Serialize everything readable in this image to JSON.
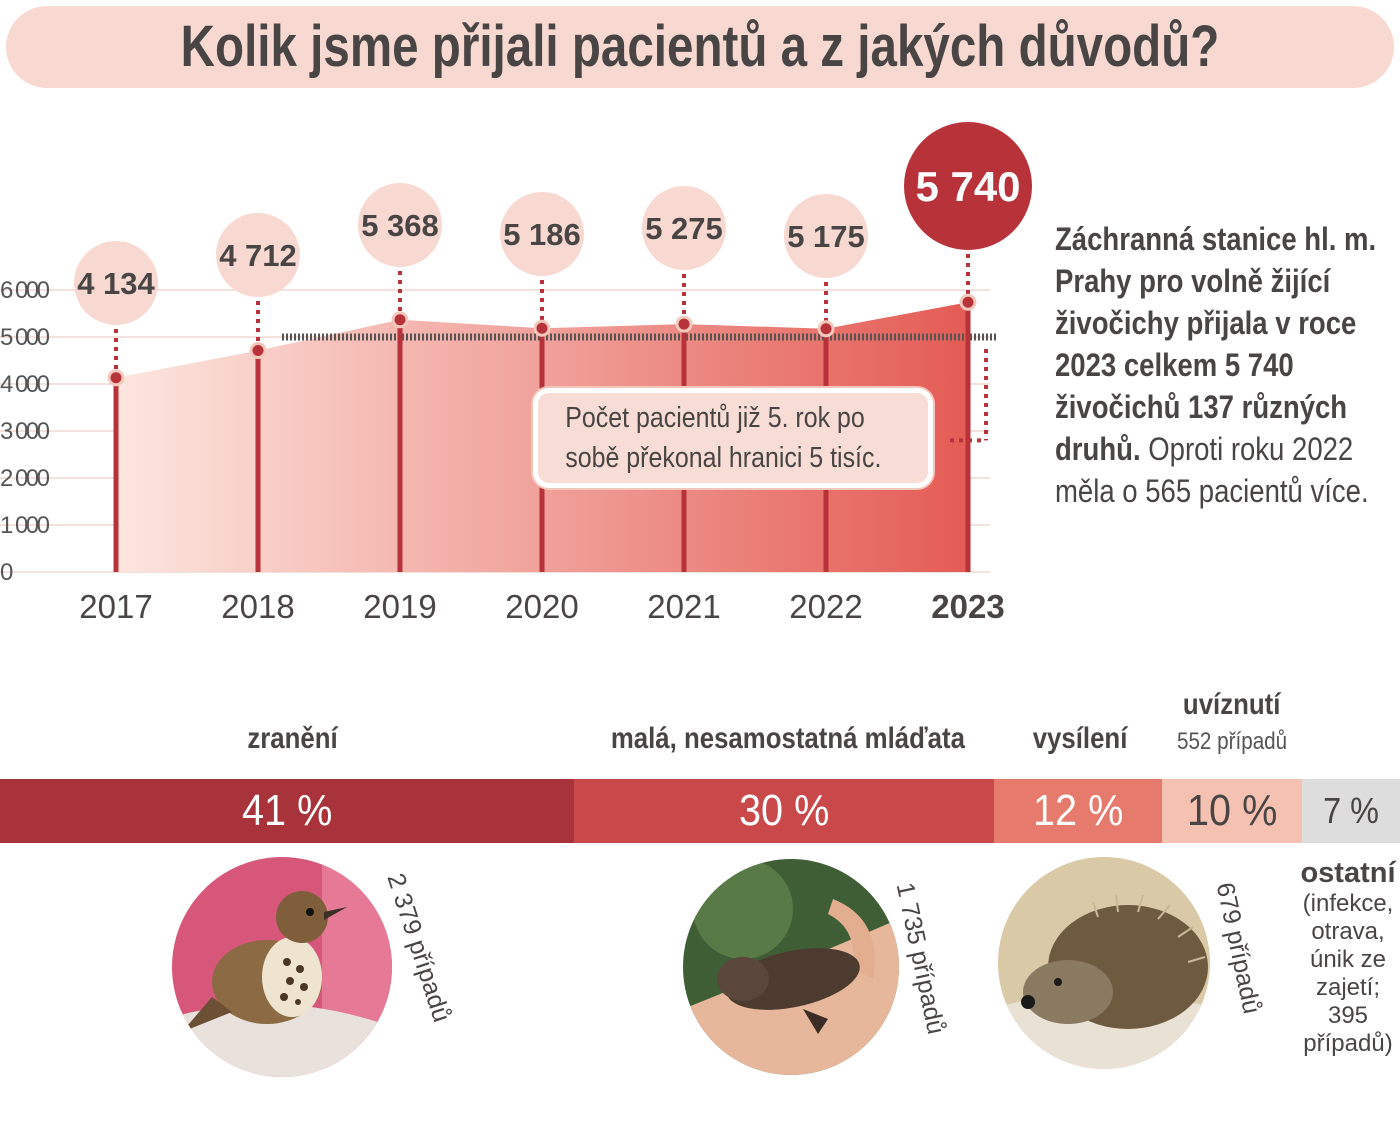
{
  "title": "Kolik jsme přijali pacientů a z jakých důvodů?",
  "chart_data": {
    "type": "area",
    "categories": [
      "2017",
      "2018",
      "2019",
      "2020",
      "2021",
      "2022",
      "2023"
    ],
    "values": [
      4134,
      4712,
      5368,
      5186,
      5275,
      5175,
      5740
    ],
    "value_labels": [
      "4 134",
      "4 712",
      "5 368",
      "5 186",
      "5 275",
      "5 175",
      "5 740"
    ],
    "highlight": "2023",
    "y_ticks": [
      0,
      1000,
      2000,
      3000,
      4000,
      5000,
      6000
    ],
    "y_tick_labels": [
      "0",
      "1 000",
      "2 000",
      "3 000",
      "4 000",
      "5 000",
      "6 000"
    ],
    "ylim": [
      0,
      6000
    ],
    "reference_line": 5000,
    "annotation": "Počet pacientů již 5. rok po sobě překonal hranici 5 tisíc.",
    "colors": {
      "area_light": "#fbe2db",
      "area_dark": "#e6685f",
      "stem": "#b8323a",
      "highlight": "#b8323a",
      "bubble": "#f8d9d1"
    }
  },
  "side_text": {
    "bold": "Záchranná stanice hl. m. Prahy pro volně žijící živočichy přijala v roce 2023 celkem 5 740 živočichů 137 různých druhů.",
    "normal": "Oproti roku 2022 měla o 565 pacientů více."
  },
  "reasons": {
    "items": [
      {
        "label": "zranění",
        "percent": "41 %",
        "share": 41,
        "color": "#a8333a",
        "cases": "2 379 případů"
      },
      {
        "label": "malá, nesamostatná mláďata",
        "percent": "30 %",
        "share": 30,
        "color": "#c9484a",
        "cases": "1 735 případů"
      },
      {
        "label": "vysílení",
        "percent": "12 %",
        "share": 12,
        "color": "#e57a6d",
        "cases": "679 případů"
      },
      {
        "label": "uvíznutí",
        "percent": "10 %",
        "share": 10,
        "color": "#f5c2b2",
        "cases": "552 případů"
      },
      {
        "label": "ostatní",
        "percent": "7 %",
        "share": 7,
        "color": "#dddddd",
        "cases": "(infekce, otrava, únik ze zajetí; 395 případů)"
      }
    ]
  }
}
